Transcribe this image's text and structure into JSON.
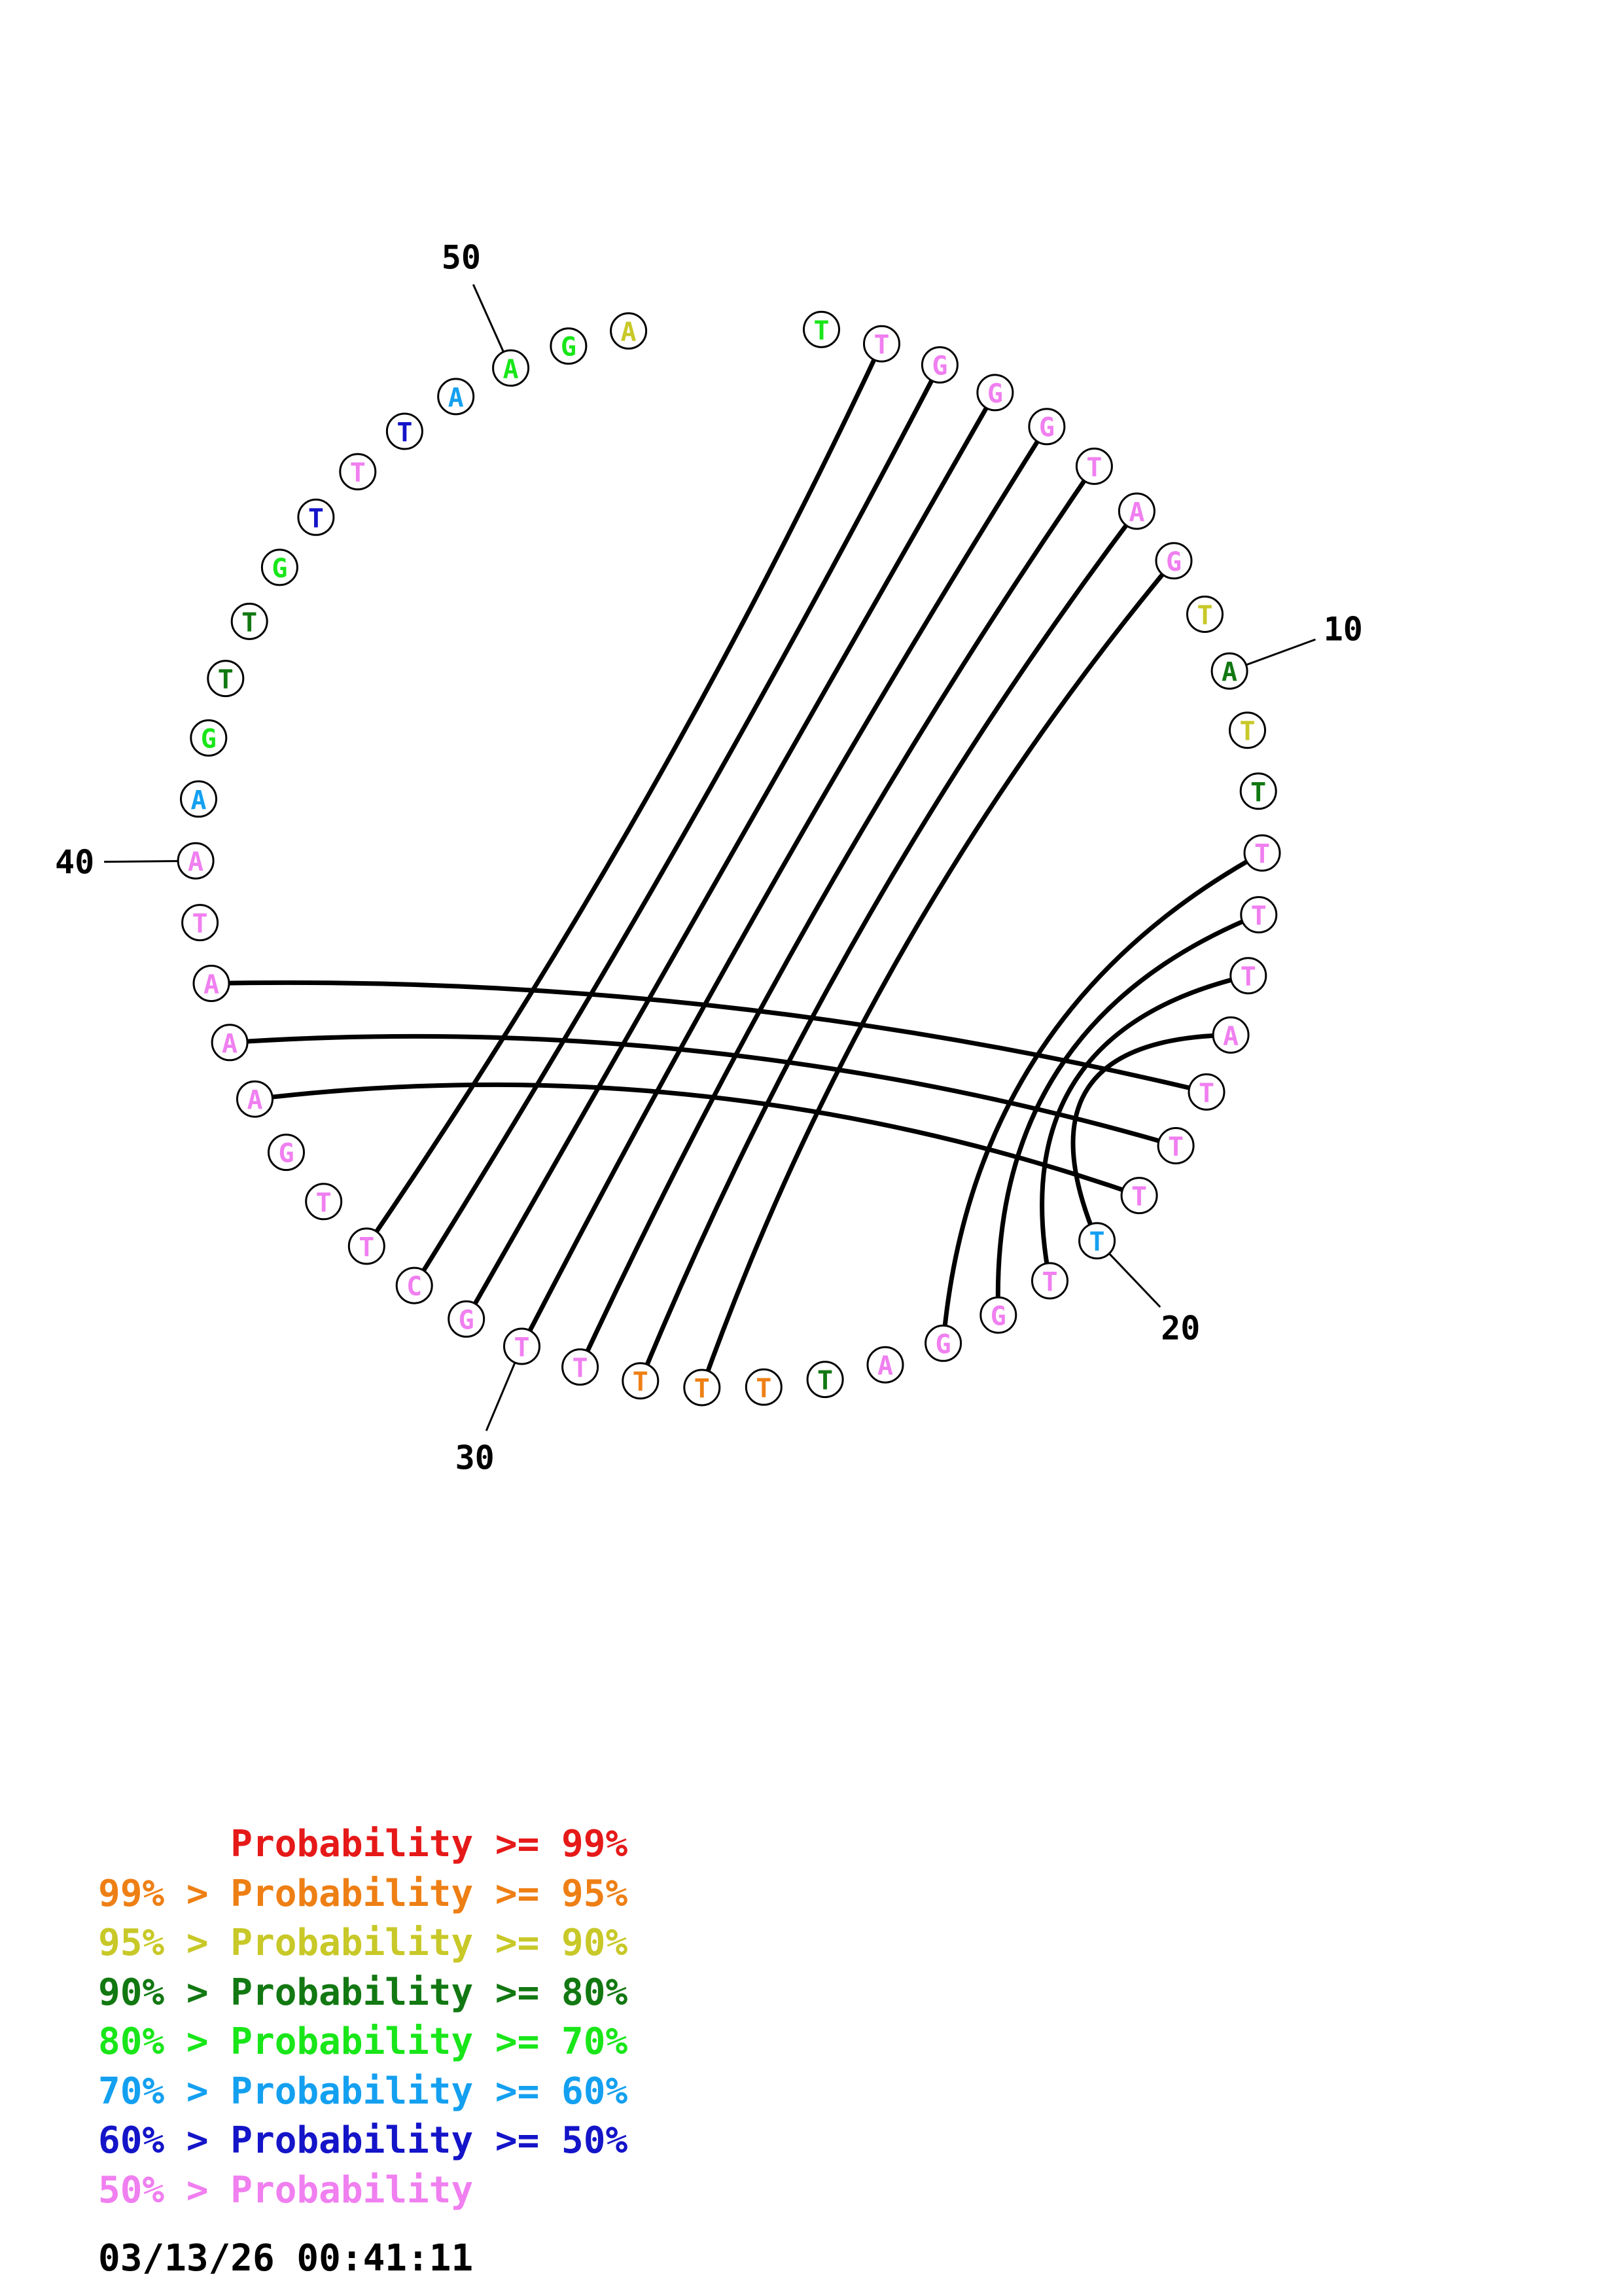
{
  "sequence": [
    {
      "base": "T",
      "color": "#19e619"
    },
    {
      "base": "T",
      "color": "#f07ff0"
    },
    {
      "base": "G",
      "color": "#f07ff0"
    },
    {
      "base": "G",
      "color": "#f07ff0"
    },
    {
      "base": "G",
      "color": "#f07ff0"
    },
    {
      "base": "T",
      "color": "#f07ff0"
    },
    {
      "base": "A",
      "color": "#f07ff0"
    },
    {
      "base": "G",
      "color": "#f07ff0"
    },
    {
      "base": "T",
      "color": "#c8c828"
    },
    {
      "base": "A",
      "color": "#127812"
    },
    {
      "base": "T",
      "color": "#c8c828"
    },
    {
      "base": "T",
      "color": "#127812"
    },
    {
      "base": "T",
      "color": "#f07ff0"
    },
    {
      "base": "T",
      "color": "#f07ff0"
    },
    {
      "base": "T",
      "color": "#f07ff0"
    },
    {
      "base": "A",
      "color": "#f07ff0"
    },
    {
      "base": "T",
      "color": "#f07ff0"
    },
    {
      "base": "T",
      "color": "#f07ff0"
    },
    {
      "base": "T",
      "color": "#f07ff0"
    },
    {
      "base": "T",
      "color": "#14a0f0"
    },
    {
      "base": "T",
      "color": "#f07ff0"
    },
    {
      "base": "G",
      "color": "#f07ff0"
    },
    {
      "base": "G",
      "color": "#f07ff0"
    },
    {
      "base": "A",
      "color": "#f07ff0"
    },
    {
      "base": "T",
      "color": "#127812"
    },
    {
      "base": "T",
      "color": "#ee7f14"
    },
    {
      "base": "T",
      "color": "#ee7f14"
    },
    {
      "base": "T",
      "color": "#ee7f14"
    },
    {
      "base": "T",
      "color": "#f07ff0"
    },
    {
      "base": "T",
      "color": "#f07ff0"
    },
    {
      "base": "G",
      "color": "#f07ff0"
    },
    {
      "base": "C",
      "color": "#f07ff0"
    },
    {
      "base": "T",
      "color": "#f07ff0"
    },
    {
      "base": "T",
      "color": "#f07ff0"
    },
    {
      "base": "G",
      "color": "#f07ff0"
    },
    {
      "base": "A",
      "color": "#f07ff0"
    },
    {
      "base": "A",
      "color": "#f07ff0"
    },
    {
      "base": "A",
      "color": "#f07ff0"
    },
    {
      "base": "T",
      "color": "#f07ff0"
    },
    {
      "base": "A",
      "color": "#f07ff0"
    },
    {
      "base": "A",
      "color": "#14a0f0"
    },
    {
      "base": "G",
      "color": "#19e619"
    },
    {
      "base": "T",
      "color": "#127812"
    },
    {
      "base": "T",
      "color": "#127812"
    },
    {
      "base": "G",
      "color": "#19e619"
    },
    {
      "base": "T",
      "color": "#1414c8"
    },
    {
      "base": "T",
      "color": "#f07ff0"
    },
    {
      "base": "T",
      "color": "#1414c8"
    },
    {
      "base": "A",
      "color": "#14a0f0"
    },
    {
      "base": "A",
      "color": "#19e619"
    },
    {
      "base": "G",
      "color": "#19e619"
    },
    {
      "base": "A",
      "color": "#c8c828"
    }
  ],
  "pairs": [
    [
      2,
      33
    ],
    [
      3,
      32
    ],
    [
      4,
      31
    ],
    [
      5,
      30
    ],
    [
      6,
      29
    ],
    [
      7,
      28
    ],
    [
      8,
      27
    ],
    [
      13,
      23
    ],
    [
      14,
      22
    ],
    [
      15,
      21
    ],
    [
      16,
      20
    ],
    [
      17,
      38
    ],
    [
      18,
      37
    ],
    [
      19,
      36
    ]
  ],
  "position_labels": [
    {
      "index": 10,
      "text": "10"
    },
    {
      "index": 20,
      "text": "20"
    },
    {
      "index": 30,
      "text": "30"
    },
    {
      "index": 40,
      "text": "40"
    },
    {
      "index": 50,
      "text": "50"
    }
  ],
  "legend": [
    {
      "prefix": "   ",
      "label": "Probability",
      "suffix": ">= 99%",
      "color": "#e61919"
    },
    {
      "prefix": "99% >",
      "label": "Probability",
      "suffix": ">= 95%",
      "color": "#ee7f14"
    },
    {
      "prefix": "95% >",
      "label": "Probability",
      "suffix": ">= 90%",
      "color": "#c8c828"
    },
    {
      "prefix": "90% >",
      "label": "Probability",
      "suffix": ">= 80%",
      "color": "#127812"
    },
    {
      "prefix": "80% >",
      "label": "Probability",
      "suffix": ">= 70%",
      "color": "#19e619"
    },
    {
      "prefix": "70% >",
      "label": "Probability",
      "suffix": ">= 60%",
      "color": "#14a0f0"
    },
    {
      "prefix": "60% >",
      "label": "Probability",
      "suffix": ">= 50%",
      "color": "#1414c8"
    },
    {
      "prefix": "50% >",
      "label": "Probability",
      "suffix": "",
      "color": "#f07ff0"
    }
  ],
  "timestamp": "03/13/26 00:41:11"
}
